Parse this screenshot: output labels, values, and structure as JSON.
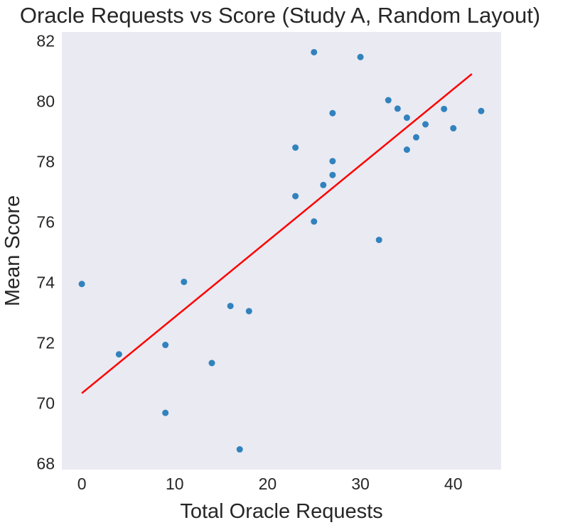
{
  "chart_data": {
    "type": "scatter",
    "title": "Oracle Requests vs Score (Study A, Random Layout)",
    "xlabel": "Total Oracle Requests",
    "ylabel": "Mean Score",
    "xlim": [
      -2.15,
      45.15
    ],
    "ylim": [
      67.8,
      82.3
    ],
    "x_ticks": [
      0,
      10,
      20,
      30,
      40
    ],
    "y_ticks": [
      68,
      70,
      72,
      74,
      76,
      78,
      80,
      82
    ],
    "grid": false,
    "background_color": "#eaeaf2",
    "series": [
      {
        "color": "#3182bd",
        "points": [
          {
            "x": 0,
            "y": 73.95
          },
          {
            "x": 4,
            "y": 71.62
          },
          {
            "x": 9,
            "y": 71.93
          },
          {
            "x": 9,
            "y": 69.68
          },
          {
            "x": 11,
            "y": 74.02
          },
          {
            "x": 14,
            "y": 71.33
          },
          {
            "x": 16,
            "y": 73.22
          },
          {
            "x": 17,
            "y": 68.47
          },
          {
            "x": 18,
            "y": 73.05
          },
          {
            "x": 23,
            "y": 78.47
          },
          {
            "x": 23,
            "y": 76.86
          },
          {
            "x": 25,
            "y": 81.63
          },
          {
            "x": 25,
            "y": 76.02
          },
          {
            "x": 26,
            "y": 77.23
          },
          {
            "x": 27,
            "y": 79.61
          },
          {
            "x": 27,
            "y": 78.02
          },
          {
            "x": 27,
            "y": 77.56
          },
          {
            "x": 30,
            "y": 81.47
          },
          {
            "x": 32,
            "y": 75.41
          },
          {
            "x": 33,
            "y": 80.04
          },
          {
            "x": 34,
            "y": 79.76
          },
          {
            "x": 35,
            "y": 79.46
          },
          {
            "x": 35,
            "y": 78.4
          },
          {
            "x": 36,
            "y": 78.81
          },
          {
            "x": 37,
            "y": 79.24
          },
          {
            "x": 39,
            "y": 79.75
          },
          {
            "x": 40,
            "y": 79.11
          },
          {
            "x": 43,
            "y": 79.68
          }
        ]
      }
    ],
    "trend_line": {
      "color": "#ff0000",
      "points": [
        {
          "x": 0,
          "y": 70.33
        },
        {
          "x": 42,
          "y": 80.91
        }
      ]
    }
  }
}
